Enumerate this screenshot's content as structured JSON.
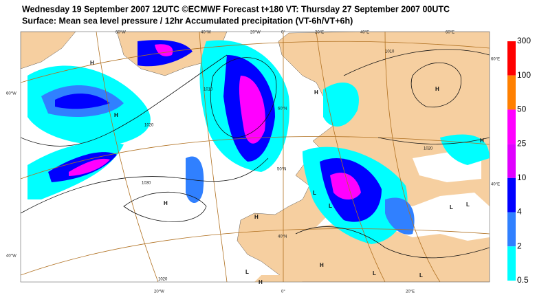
{
  "header": {
    "line1": "Wednesday 19 September 2007 12UTC ©ECMWF Forecast t+180 VT: Thursday 27 September 2007 00UTC",
    "line2": "Surface: Mean sea level pressure / 12hr Accumulated precipitation (VT-6h/VT+6h)"
  },
  "colorbar": {
    "levels": [
      300,
      100,
      50,
      25,
      10,
      4,
      2,
      0.5
    ],
    "colors": [
      "#ff0000",
      "#ff8000",
      "#ff00ff",
      "#e000ff",
      "#0000ff",
      "#3080ff",
      "#00ffff"
    ]
  },
  "map": {
    "graticule_labels": [
      "60°W",
      "40°W",
      "20°W",
      "0°",
      "20°E",
      "40°E",
      "60°E",
      "60°E",
      "40°E",
      "60°W",
      "40°W",
      "20°W",
      "0°",
      "20°E",
      "60°N",
      "50°N",
      "40°N"
    ],
    "isobar_labels": [
      "1010",
      "1020",
      "1020",
      "1030",
      "1020",
      "1010"
    ],
    "pressure_centers": [
      "H",
      "H",
      "H",
      "H",
      "H",
      "H",
      "H",
      "H",
      "H",
      "L",
      "L",
      "L",
      "L",
      "L",
      "L",
      "L"
    ]
  }
}
